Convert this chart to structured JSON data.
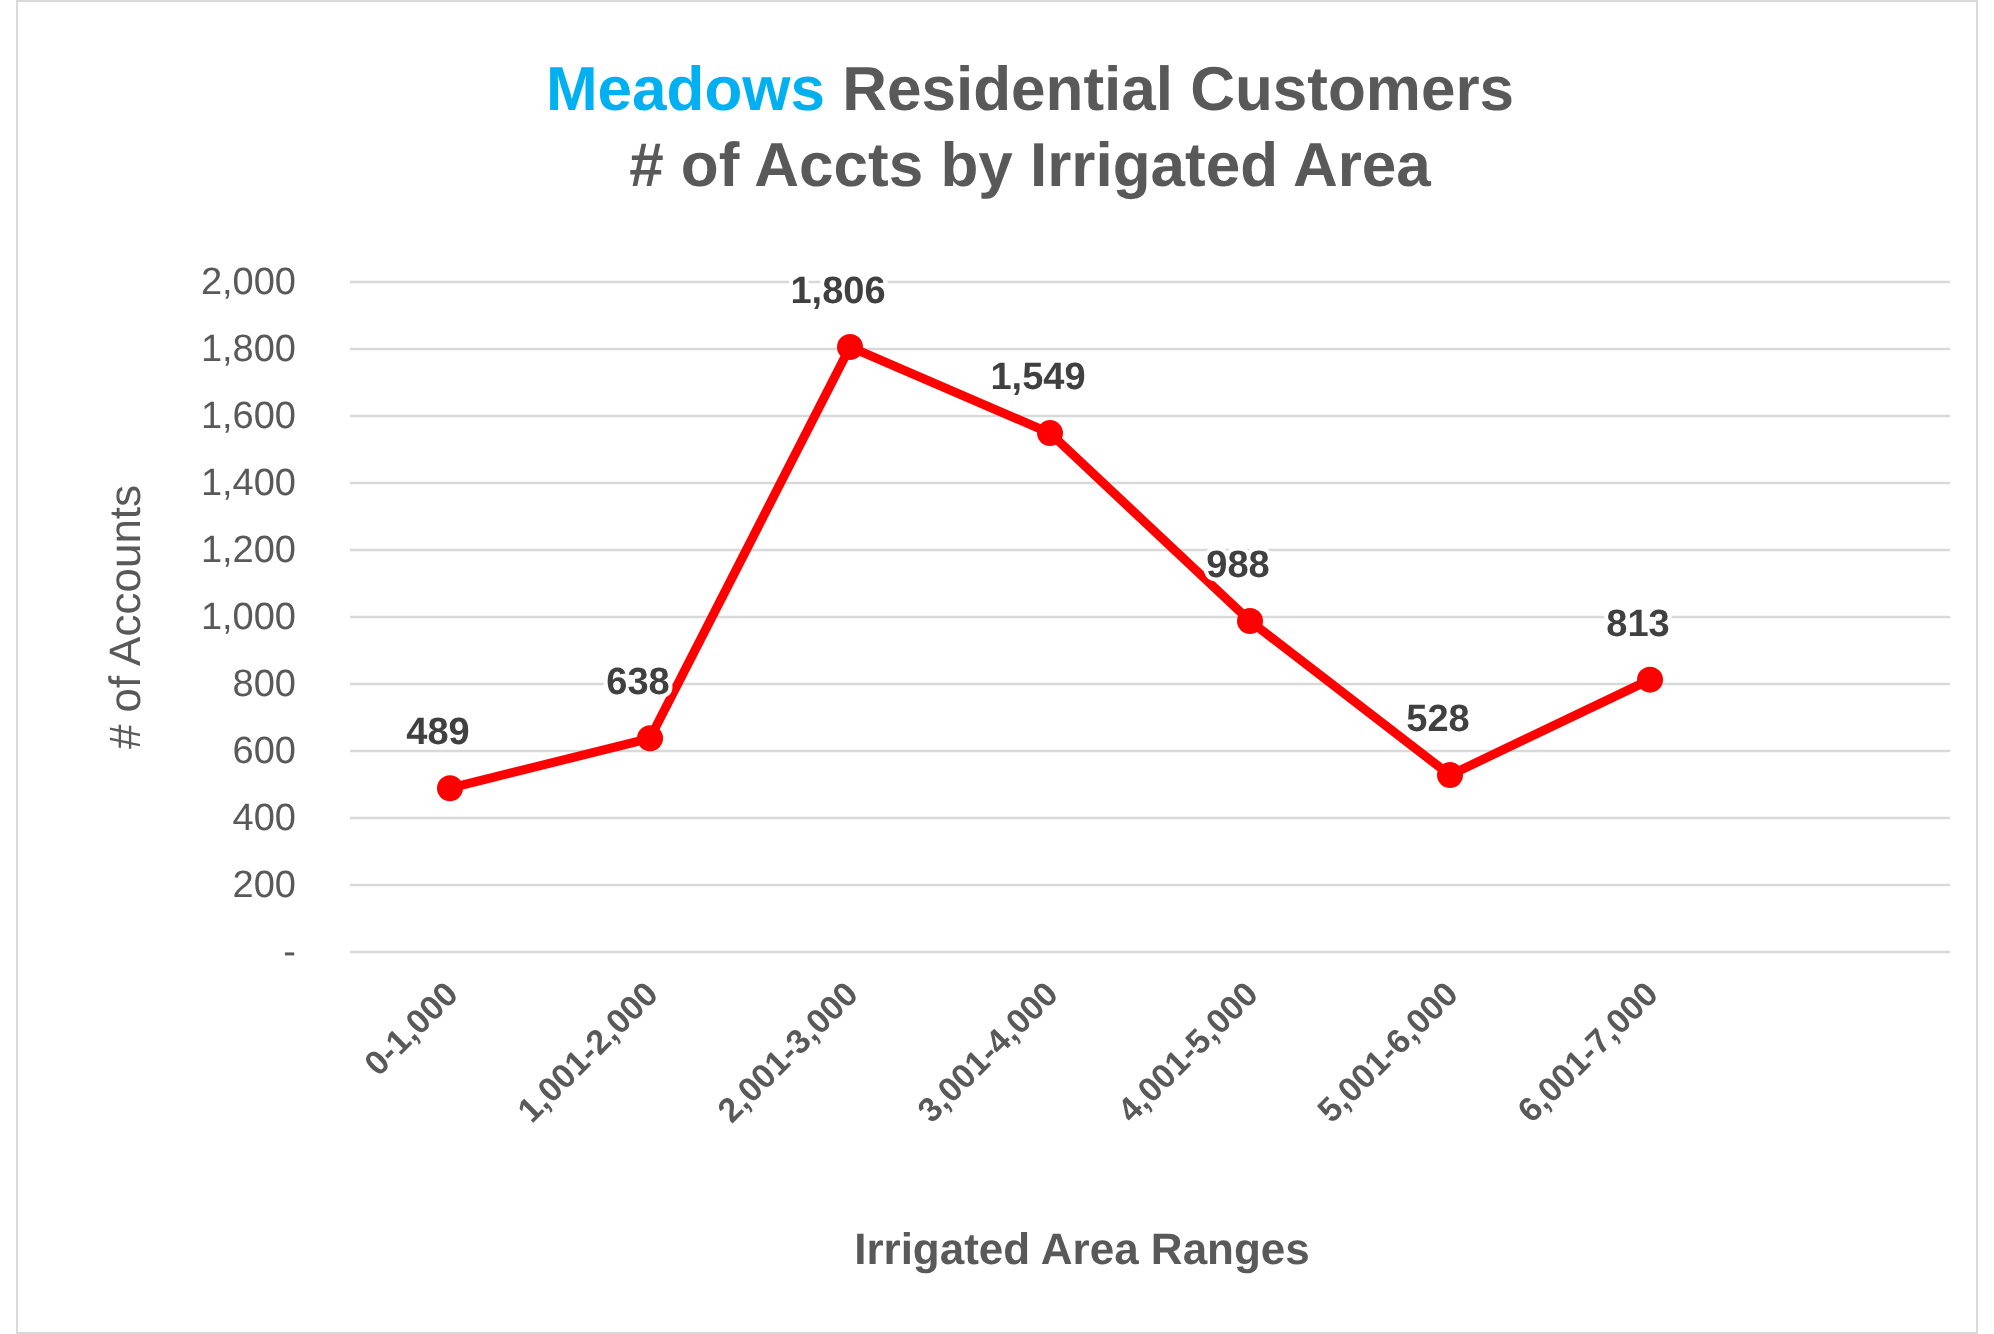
{
  "chart_data": {
    "type": "line",
    "title": "Meadows Residential Customers\n# of Accts by Irrigated Area",
    "xlabel": "Irrigated Area Ranges",
    "ylabel": "# of Accounts",
    "categories": [
      "0-1,000",
      "1,001-2,000",
      "2,001-3,000",
      "3,001-4,000",
      "4,001-5,000",
      "5,001-6,000",
      "6,001-7,000",
      null
    ],
    "series": [
      {
        "color": "#ff0000",
        "values": [
          489,
          638,
          1806,
          1549,
          988,
          528,
          813,
          null
        ],
        "value_labels": [
          "489",
          "638",
          "1,806",
          "1,549",
          "988",
          "528",
          "813",
          null
        ]
      }
    ],
    "ylim": [
      0,
      2000
    ],
    "yticks": [
      {
        "value": 0,
        "label": "-"
      },
      {
        "value": 200,
        "label": "200"
      },
      {
        "value": 400,
        "label": "400"
      },
      {
        "value": 600,
        "label": "600"
      },
      {
        "value": 800,
        "label": "800"
      },
      {
        "value": 1000,
        "label": "1,000"
      },
      {
        "value": 1200,
        "label": "1,200"
      },
      {
        "value": 1400,
        "label": "1,400"
      },
      {
        "value": 1600,
        "label": "1,600"
      },
      {
        "value": 1800,
        "label": "1,800"
      },
      {
        "value": 2000,
        "label": "2,000"
      }
    ],
    "grid": "y",
    "marker": "circle",
    "line_style": "solid"
  }
}
